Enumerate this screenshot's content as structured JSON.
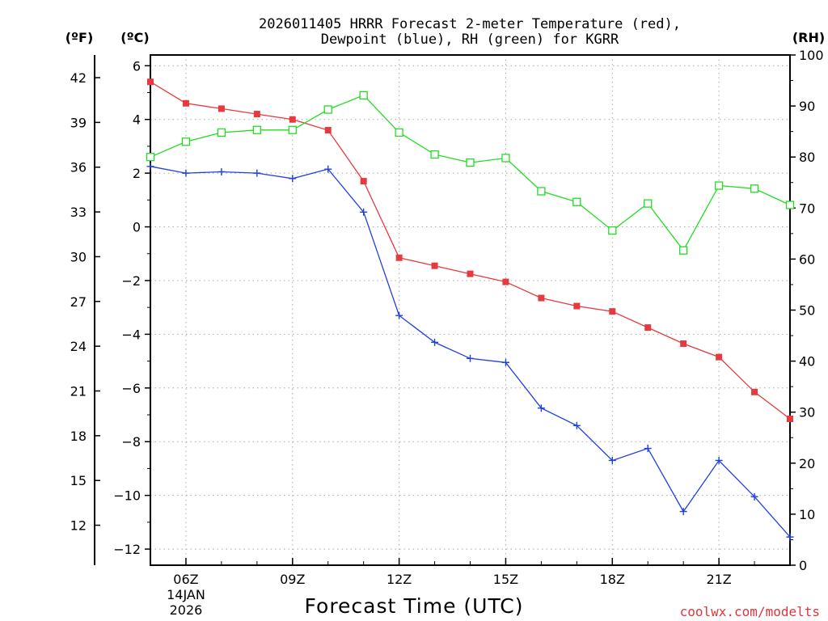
{
  "chart_data": {
    "type": "line",
    "title_line1": "2026011405 HRRR Forecast 2-meter Temperature (red),",
    "title_line2": "Dewpoint (blue), RH (green) for KGRR",
    "xlabel": "Forecast Time (UTC)",
    "credit": "coolwx.com/modelts",
    "left_f_unit": "(ºF)",
    "left_c_unit": "(ºC)",
    "right_unit": "(RH)",
    "x_hours": [
      5,
      6,
      7,
      8,
      9,
      10,
      11,
      12,
      13,
      14,
      15,
      16,
      17,
      18,
      19,
      20,
      21,
      22,
      23
    ],
    "x_ticks": [
      {
        "hour": 6,
        "label": "06Z",
        "sub1": "14JAN",
        "sub2": "2026"
      },
      {
        "hour": 9,
        "label": "09Z",
        "sub1": "",
        "sub2": ""
      },
      {
        "hour": 12,
        "label": "12Z",
        "sub1": "",
        "sub2": ""
      },
      {
        "hour": 15,
        "label": "15Z",
        "sub1": "",
        "sub2": ""
      },
      {
        "hour": 18,
        "label": "18Z",
        "sub1": "",
        "sub2": ""
      },
      {
        "hour": 21,
        "label": "21Z",
        "sub1": "",
        "sub2": ""
      }
    ],
    "c_range": [
      -12.6,
      6.4
    ],
    "c_ticks": [
      6,
      4,
      2,
      0,
      -2,
      -4,
      -6,
      -8,
      -10,
      -12
    ],
    "f_ticks": [
      42,
      39,
      36,
      33,
      30,
      27,
      24,
      21,
      18,
      15,
      12
    ],
    "rh_range": [
      0,
      100
    ],
    "rh_ticks": [
      100,
      90,
      80,
      70,
      60,
      50,
      40,
      30,
      20,
      10,
      0
    ],
    "series": [
      {
        "name": "Temperature",
        "unit": "C",
        "color": "#e8393f",
        "marker": "filled-square",
        "values": [
          5.4,
          4.6,
          4.4,
          4.2,
          4.0,
          3.6,
          1.7,
          -1.15,
          -1.45,
          -1.75,
          -2.05,
          -2.65,
          -2.95,
          -3.15,
          -3.75,
          -4.35,
          -4.85,
          -6.15,
          -7.15
        ]
      },
      {
        "name": "Dewpoint",
        "unit": "C",
        "color": "#2140e0",
        "marker": "plus",
        "values": [
          2.25,
          2.0,
          2.05,
          2.0,
          1.8,
          2.15,
          0.55,
          -3.3,
          -4.3,
          -4.9,
          -5.05,
          -6.75,
          -7.4,
          -8.7,
          -8.25,
          -10.6,
          -8.7,
          -10.05,
          -11.55
        ]
      },
      {
        "name": "RH",
        "unit": "%",
        "color": "#22dd22",
        "marker": "open-square",
        "values": [
          80.0,
          83.0,
          84.8,
          85.3,
          85.3,
          89.3,
          92.1,
          84.8,
          80.5,
          78.9,
          79.8,
          73.3,
          71.2,
          65.6,
          70.9,
          61.7,
          74.4,
          73.8,
          70.6
        ]
      }
    ]
  }
}
